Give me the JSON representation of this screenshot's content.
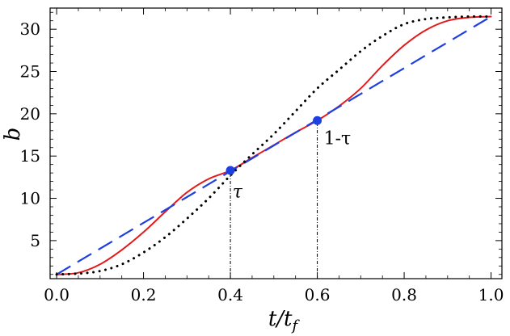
{
  "chart_data": {
    "type": "line",
    "xlabel_main": "t/t",
    "xlabel_sub": "f",
    "ylabel": "b",
    "xlim": [
      -0.015,
      1.025
    ],
    "ylim": [
      0.5,
      32.5
    ],
    "xticks": [
      0.0,
      0.2,
      0.4,
      0.6,
      0.8,
      1.0
    ],
    "xtick_labels": [
      "0.0",
      "0.2",
      "0.4",
      "0.6",
      "0.8",
      "1.0"
    ],
    "yticks": [
      5,
      10,
      15,
      20,
      25,
      30
    ],
    "ytick_labels": [
      "5",
      "10",
      "15",
      "20",
      "25",
      "30"
    ],
    "grid": false,
    "colors": {
      "solid": "#e31a1c",
      "dashed": "#1f3fe0",
      "dotted": "#000000",
      "marker": "#1f3fe0",
      "guide": "#000000"
    },
    "series": [
      {
        "style": "solid",
        "x": [
          0.0,
          0.05,
          0.1,
          0.15,
          0.2,
          0.25,
          0.3,
          0.35,
          0.4,
          0.45,
          0.5,
          0.55,
          0.6,
          0.65,
          0.7,
          0.75,
          0.8,
          0.85,
          0.9,
          0.95,
          1.0
        ],
        "y": [
          1.0,
          1.2,
          2.2,
          3.9,
          6.0,
          8.4,
          10.7,
          12.3,
          13.3,
          14.8,
          16.3,
          17.8,
          19.2,
          20.9,
          23.0,
          25.7,
          28.1,
          29.9,
          31.0,
          31.4,
          31.5
        ]
      },
      {
        "style": "dashed",
        "x": [
          0.0,
          1.0
        ],
        "y": [
          1.0,
          31.5
        ]
      },
      {
        "style": "dotted",
        "x": [
          0.0,
          0.05,
          0.1,
          0.15,
          0.2,
          0.25,
          0.3,
          0.35,
          0.4,
          0.45,
          0.5,
          0.55,
          0.6,
          0.65,
          0.7,
          0.75,
          0.8,
          0.85,
          0.9,
          0.95,
          1.0
        ],
        "y": [
          1.0,
          1.1,
          1.4,
          2.2,
          3.6,
          5.4,
          7.6,
          10.0,
          12.7,
          15.2,
          17.6,
          20.3,
          23.0,
          25.2,
          27.4,
          29.2,
          30.6,
          31.2,
          31.4,
          31.5,
          31.5
        ]
      }
    ],
    "markers": [
      {
        "x": 0.4,
        "y": 13.3
      },
      {
        "x": 0.6,
        "y": 19.2
      }
    ],
    "guides": [
      {
        "x": 0.4,
        "y_top": 13.3
      },
      {
        "x": 0.6,
        "y_top": 19.2
      }
    ],
    "annotations": [
      {
        "text": "τ",
        "x": 0.405,
        "y": 10.1,
        "italic": true
      },
      {
        "text": "1-τ",
        "x": 0.615,
        "y": 16.4,
        "italic": false
      }
    ]
  }
}
